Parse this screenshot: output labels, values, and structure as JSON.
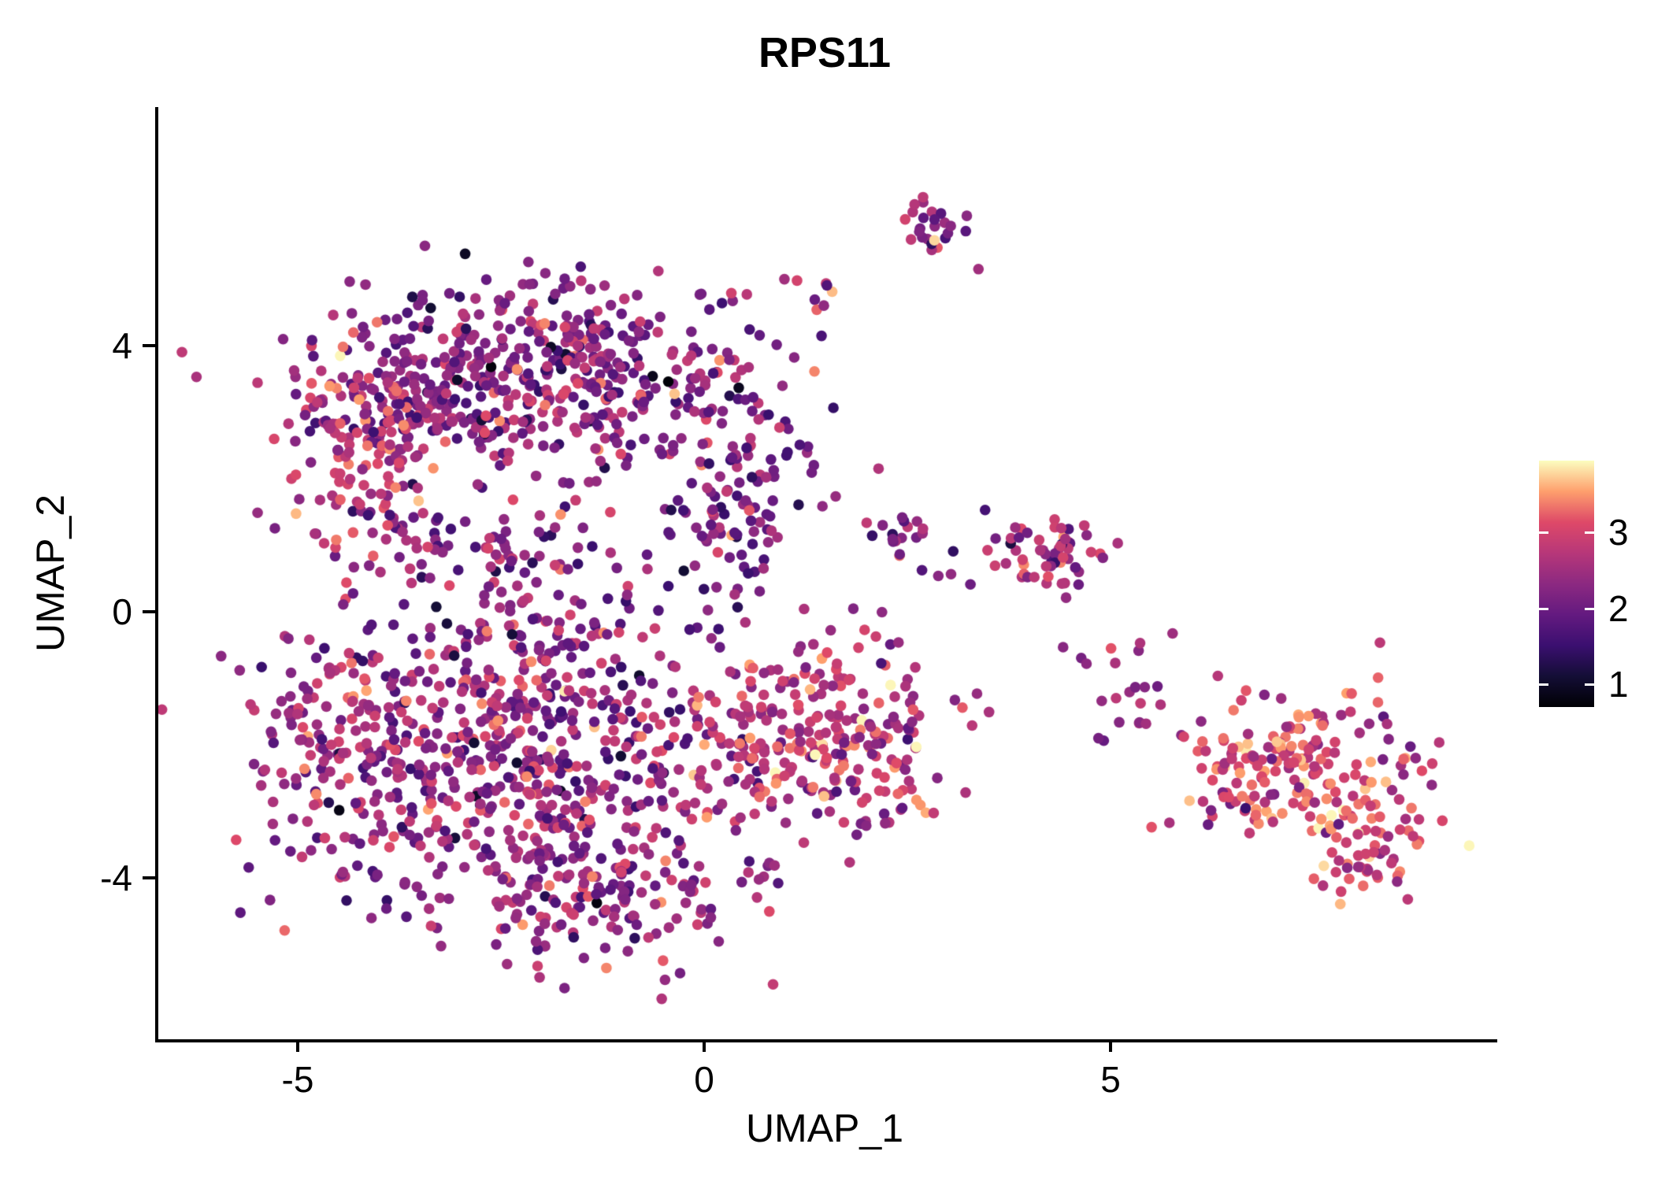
{
  "figure": {
    "title": "RPS11"
  },
  "axes": {
    "xlabel": "UMAP_1",
    "ylabel": "UMAP_2",
    "x_tick_labels": [
      "-5",
      "0",
      "5"
    ],
    "y_tick_labels": [
      "4",
      "0",
      "-4"
    ]
  },
  "colorbar": {
    "tick_labels": [
      "3",
      "2",
      "1"
    ]
  },
  "chart_data": {
    "type": "scatter",
    "title": "RPS11",
    "xlabel": "UMAP_1",
    "ylabel": "UMAP_2",
    "xlim": [
      -6.8,
      9.7
    ],
    "ylim": [
      -6.4,
      7.6
    ],
    "x_ticks": [
      -5,
      0,
      5
    ],
    "y_ticks": [
      -4,
      0,
      4
    ],
    "grid": false,
    "legend_position": "right",
    "point_radius_px": 6.8,
    "seed": 42,
    "color_scale": {
      "name": "magma",
      "domain": [
        0.7,
        3.95
      ],
      "legend_ticks": [
        3,
        2,
        1
      ],
      "stops": [
        {
          "t": 0,
          "color": "#000004"
        },
        {
          "t": 0.125,
          "color": "#140E36"
        },
        {
          "t": 0.25,
          "color": "#3B0F70"
        },
        {
          "t": 0.375,
          "color": "#641A80"
        },
        {
          "t": 0.5,
          "color": "#8C2981"
        },
        {
          "t": 0.625,
          "color": "#B73779"
        },
        {
          "t": 0.75,
          "color": "#DE4968"
        },
        {
          "t": 0.875,
          "color": "#FE9F6D"
        },
        {
          "t": 1,
          "color": "#FCFDBF"
        }
      ]
    },
    "clusters": [
      {
        "name": "upper-main",
        "cx": -2.2,
        "cy": 3.5,
        "sx": 1.3,
        "sy": 0.72,
        "n": 520,
        "expr_mean": 2.25,
        "expr_sd": 0.55
      },
      {
        "name": "upper-left-edge",
        "cx": -4.35,
        "cy": 3.0,
        "sx": 0.5,
        "sy": 0.55,
        "n": 90,
        "expr_mean": 2.7,
        "expr_sd": 0.45
      },
      {
        "name": "left-mid",
        "cx": -3.9,
        "cy": 1.7,
        "sx": 0.55,
        "sy": 0.75,
        "n": 70,
        "expr_mean": 2.55,
        "expr_sd": 0.5
      },
      {
        "name": "upper-right-extension",
        "cx": 0.3,
        "cy": 1.7,
        "sx": 0.45,
        "sy": 0.85,
        "n": 110,
        "expr_mean": 2.1,
        "expr_sd": 0.5
      },
      {
        "name": "mid-gap",
        "cx": -2.5,
        "cy": 0.8,
        "sx": 0.95,
        "sy": 0.45,
        "n": 60,
        "expr_mean": 2.35,
        "expr_sd": 0.5
      },
      {
        "name": "lower-main",
        "cx": -2.3,
        "cy": -2.1,
        "sx": 1.45,
        "sy": 1.25,
        "n": 700,
        "expr_mean": 2.35,
        "expr_sd": 0.55
      },
      {
        "name": "lower-left-edge",
        "cx": -4.6,
        "cy": -2.0,
        "sx": 0.5,
        "sy": 0.7,
        "n": 90,
        "expr_mean": 2.7,
        "expr_sd": 0.45
      },
      {
        "name": "lower-bottom-edge",
        "cx": -1.3,
        "cy": -4.3,
        "sx": 0.9,
        "sy": 0.45,
        "n": 120,
        "expr_mean": 2.35,
        "expr_sd": 0.5
      },
      {
        "name": "lower-right-lobe",
        "cx": 1.4,
        "cy": -1.9,
        "sx": 0.8,
        "sy": 0.72,
        "n": 260,
        "expr_mean": 2.75,
        "expr_sd": 0.5
      },
      {
        "name": "top-satellite",
        "cx": 2.75,
        "cy": 5.85,
        "sx": 0.22,
        "sy": 0.27,
        "n": 26,
        "expr_mean": 2.4,
        "expr_sd": 0.5
      },
      {
        "name": "top-trail",
        "cx": 1.3,
        "cy": 4.75,
        "sx": 0.65,
        "sy": 0.35,
        "n": 14,
        "expr_mean": 2.5,
        "expr_sd": 0.5
      },
      {
        "name": "mid-small",
        "cx": 2.35,
        "cy": 1.25,
        "sx": 0.2,
        "sy": 0.15,
        "n": 13,
        "expr_mean": 2.2,
        "expr_sd": 0.4
      },
      {
        "name": "mid-bridge",
        "cx": 3.3,
        "cy": 0.95,
        "sx": 0.5,
        "sy": 0.28,
        "n": 20,
        "expr_mean": 2.3,
        "expr_sd": 0.5
      },
      {
        "name": "midright-satellite",
        "cx": 4.35,
        "cy": 0.85,
        "sx": 0.37,
        "sy": 0.3,
        "n": 48,
        "expr_mean": 2.35,
        "expr_sd": 0.55
      },
      {
        "name": "right-bridge",
        "cx": 5.2,
        "cy": -1.4,
        "sx": 0.55,
        "sy": 0.35,
        "n": 14,
        "expr_mean": 2.6,
        "expr_sd": 0.45
      },
      {
        "name": "right-sparse",
        "cx": 4.8,
        "cy": -0.5,
        "sx": 0.3,
        "sy": 0.3,
        "n": 8,
        "expr_mean": 2.5,
        "expr_sd": 0.4
      },
      {
        "name": "farright-main",
        "cx": 7.2,
        "cy": -2.3,
        "sx": 0.75,
        "sy": 0.55,
        "n": 190,
        "expr_mean": 3.0,
        "expr_sd": 0.45
      },
      {
        "name": "farright-tail",
        "cx": 8.15,
        "cy": -3.6,
        "sx": 0.45,
        "sy": 0.38,
        "n": 60,
        "expr_mean": 3.0,
        "expr_sd": 0.45
      }
    ]
  }
}
